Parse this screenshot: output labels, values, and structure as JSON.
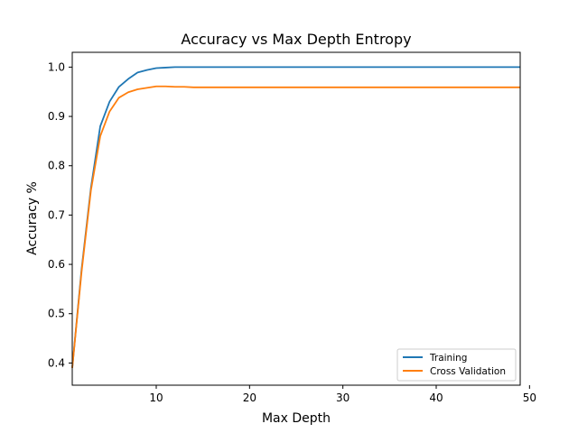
{
  "chart_data": {
    "type": "line",
    "title": "Accuracy vs Max Depth Entropy",
    "xlabel": "Max Depth",
    "ylabel": "Accuracy %",
    "xlim": [
      1,
      49
    ],
    "ylim": [
      0.355,
      1.03
    ],
    "xticks": [
      10,
      20,
      30,
      40,
      50
    ],
    "yticks": [
      0.4,
      0.5,
      0.6,
      0.7,
      0.8,
      0.9,
      1.0
    ],
    "ytick_labels": [
      "0.4",
      "0.5",
      "0.6",
      "0.7",
      "0.8",
      "0.9",
      "1.0"
    ],
    "grid": false,
    "legend_position": "lower right",
    "series": [
      {
        "name": "Training",
        "color": "#1f77b4",
        "x": [
          1,
          2,
          3,
          4,
          5,
          6,
          7,
          8,
          9,
          10,
          11,
          12,
          13,
          14,
          15,
          20,
          25,
          30,
          35,
          40,
          45,
          49
        ],
        "y": [
          0.39,
          0.59,
          0.755,
          0.88,
          0.93,
          0.96,
          0.976,
          0.989,
          0.994,
          0.998,
          0.999,
          1.0,
          1.0,
          1.0,
          1.0,
          1.0,
          1.0,
          1.0,
          1.0,
          1.0,
          1.0,
          1.0
        ]
      },
      {
        "name": "Cross Validation",
        "color": "#ff7f0e",
        "x": [
          1,
          2,
          3,
          4,
          5,
          6,
          7,
          8,
          9,
          10,
          11,
          12,
          13,
          14,
          15,
          20,
          25,
          30,
          35,
          40,
          45,
          49
        ],
        "y": [
          0.39,
          0.585,
          0.75,
          0.86,
          0.91,
          0.938,
          0.949,
          0.955,
          0.958,
          0.961,
          0.961,
          0.96,
          0.96,
          0.959,
          0.959,
          0.959,
          0.959,
          0.959,
          0.959,
          0.959,
          0.959,
          0.959
        ]
      }
    ]
  }
}
